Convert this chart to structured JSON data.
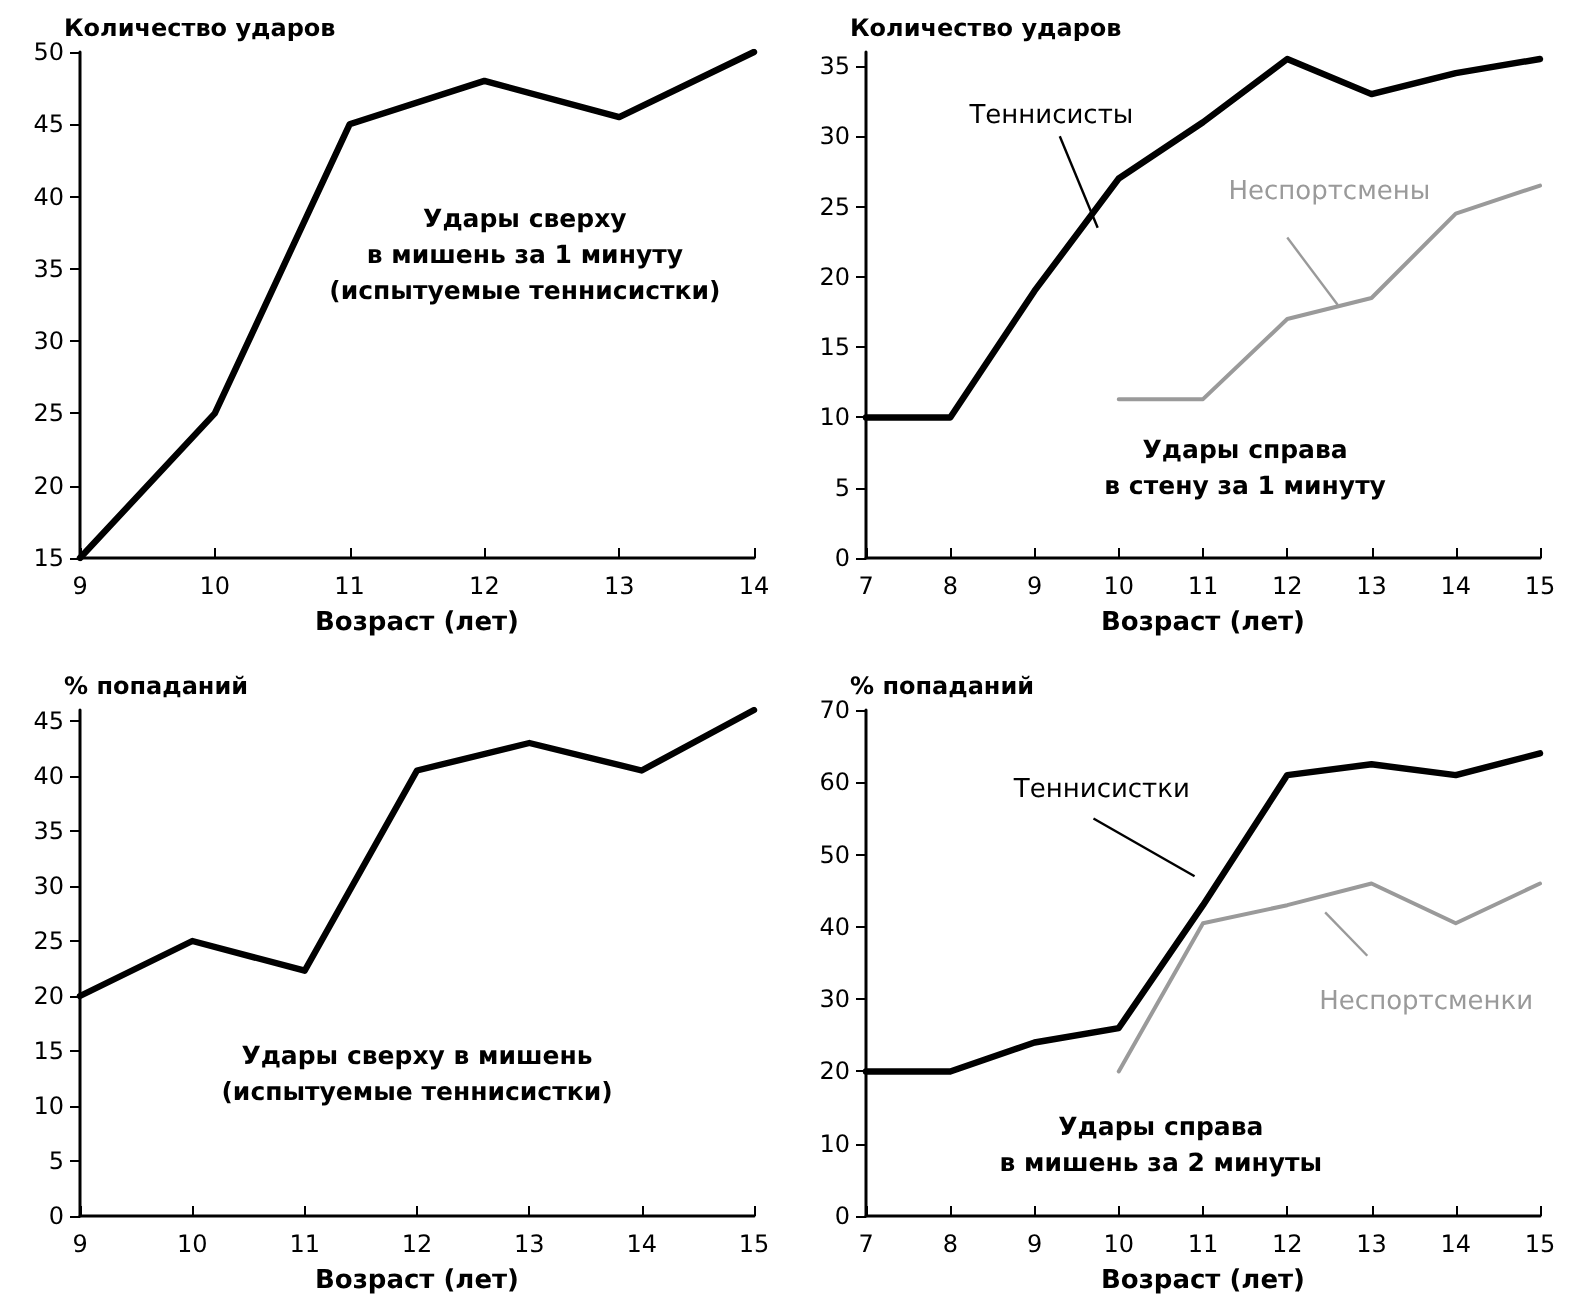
{
  "chart_data": [
    {
      "type": "line",
      "ylabel": "Количество ударов",
      "xlabel": "Возраст (лет)",
      "annotations": [
        "Удары сверху\nв мишень за 1 минуту\n(испытуемые теннисистки)"
      ],
      "x": [
        9,
        10,
        11,
        12,
        13,
        14
      ],
      "xlim": [
        9,
        14
      ],
      "xticks": [
        9,
        10,
        11,
        12,
        13,
        14
      ],
      "ylim": [
        15,
        50
      ],
      "yticks": [
        15,
        20,
        25,
        30,
        35,
        40,
        45,
        50
      ],
      "grid": false,
      "legend": false,
      "marker": "none",
      "line_style": "solid",
      "series": [
        {
          "color": "#000000",
          "values": [
            15,
            25,
            45,
            48,
            45.5,
            50
          ]
        }
      ]
    },
    {
      "type": "line",
      "ylabel": "Количество ударов",
      "xlabel": "Возраст (лет)",
      "annotations": [
        "Удары справа\nв стену за 1 минуту"
      ],
      "xlim": [
        7,
        15
      ],
      "xticks": [
        7,
        8,
        9,
        10,
        11,
        12,
        13,
        14,
        15
      ],
      "ylim": [
        0,
        36
      ],
      "yticks": [
        0,
        5,
        10,
        15,
        20,
        25,
        30,
        35
      ],
      "grid": false,
      "legend": false,
      "marker": "none",
      "line_style": "solid",
      "series": [
        {
          "name": "Теннисисты",
          "color": "#000000",
          "x": [
            7,
            8,
            9,
            10,
            11,
            12,
            13,
            14,
            15
          ],
          "values": [
            10,
            10,
            19,
            27,
            31,
            35.5,
            33,
            34.5,
            35.5
          ]
        },
        {
          "name": "Неспортсмены",
          "color": "#9a9a9a",
          "x": [
            10,
            11,
            12,
            13,
            14,
            15
          ],
          "values": [
            11.3,
            11.3,
            17,
            18.5,
            24.5,
            26.5
          ]
        }
      ]
    },
    {
      "type": "line",
      "ylabel": "% попаданий",
      "xlabel": "Возраст (лет)",
      "annotations": [
        "Удары сверху в мишень\n(испытуемые теннисистки)"
      ],
      "x": [
        9,
        10,
        11,
        12,
        13,
        14,
        15
      ],
      "xlim": [
        9,
        15
      ],
      "xticks": [
        9,
        10,
        11,
        12,
        13,
        14,
        15
      ],
      "ylim": [
        0,
        46
      ],
      "yticks": [
        0,
        5,
        10,
        15,
        20,
        25,
        30,
        35,
        40,
        45
      ],
      "grid": false,
      "legend": false,
      "marker": "none",
      "line_style": "solid",
      "series": [
        {
          "color": "#000000",
          "values": [
            20,
            25,
            22.3,
            40.5,
            43,
            40.5,
            46
          ]
        }
      ]
    },
    {
      "type": "line",
      "ylabel": "% попаданий",
      "xlabel": "Возраст (лет)",
      "annotations": [
        "Удары справа\nв мишень за 2 минуты"
      ],
      "xlim": [
        7,
        15
      ],
      "xticks": [
        7,
        8,
        9,
        10,
        11,
        12,
        13,
        14,
        15
      ],
      "ylim": [
        0,
        70
      ],
      "yticks": [
        0,
        10,
        20,
        30,
        40,
        50,
        60,
        70
      ],
      "grid": false,
      "legend": false,
      "marker": "none",
      "line_style": "solid",
      "series": [
        {
          "name": "Теннисистки",
          "color": "#000000",
          "x": [
            7,
            8,
            9,
            10,
            11,
            12,
            13,
            14,
            15
          ],
          "values": [
            20,
            20,
            24,
            26,
            43,
            61,
            62.5,
            61,
            64
          ]
        },
        {
          "name": "Неспортсменки",
          "color": "#9a9a9a",
          "x": [
            10,
            11,
            12,
            13,
            14,
            15
          ],
          "values": [
            20,
            40.5,
            43,
            46,
            40.5,
            46
          ]
        }
      ]
    }
  ]
}
